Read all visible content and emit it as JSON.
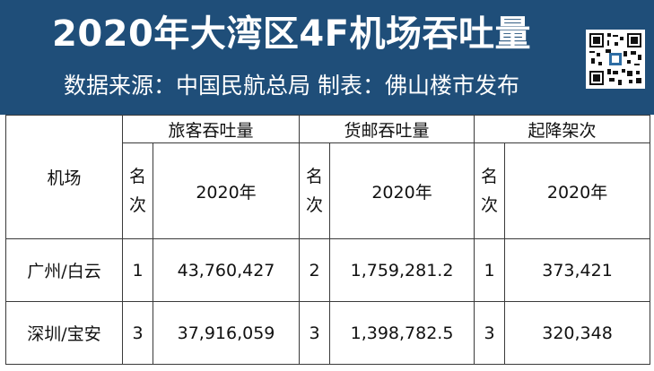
{
  "header": {
    "title": "2020年大湾区4F机场吞吐量",
    "subtitle": "数据来源：中国民航总局 制表：佛山楼市发布"
  },
  "table": {
    "col_airport": "机场",
    "groups": [
      "旅客吞吐量",
      "货邮吞吐量",
      "起降架次"
    ],
    "rank_label": "名次",
    "rank_label_top": "名",
    "rank_label_bottom": "次",
    "year_label": "2020年",
    "rows": [
      {
        "airport": "广州/白云",
        "passenger_rank": "1",
        "passenger": "43,760,427",
        "cargo_rank": "2",
        "cargo": "1,759,281.2",
        "flights_rank": "1",
        "flights": "373,421"
      },
      {
        "airport": "深圳/宝安",
        "passenger_rank": "3",
        "passenger": "37,916,059",
        "cargo_rank": "3",
        "cargo": "1,398,782.5",
        "flights_rank": "3",
        "flights": "320,348"
      }
    ]
  },
  "colors": {
    "header_bg": "#1f4e79",
    "header_text": "#ffffff",
    "border": "#3a3a3a"
  },
  "icons": {
    "qr": "qr-code-icon"
  }
}
